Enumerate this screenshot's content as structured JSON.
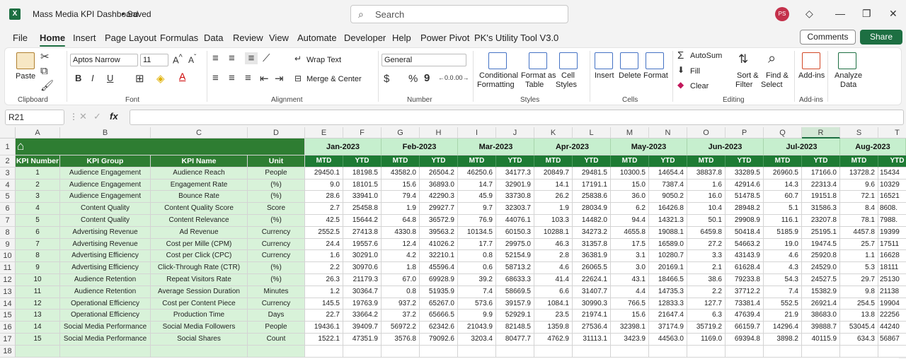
{
  "app": {
    "title": "Mass Media KPI Dashboard",
    "saved": "• Saved",
    "logo": "X",
    "avatar": "PS"
  },
  "search": {
    "placeholder": "Search"
  },
  "tabs": [
    "File",
    "Home",
    "Insert",
    "Page Layout",
    "Formulas",
    "Data",
    "Review",
    "View",
    "Automate",
    "Developer",
    "Help",
    "Power Pivot",
    "PK's Utility Tool V3.0"
  ],
  "actions": {
    "comments": "Comments",
    "share": "Share"
  },
  "ribbon": {
    "paste": "Paste",
    "clipboard": "Clipboard",
    "font_name": "Aptos Narrow",
    "font_size": "11",
    "font": "Font",
    "wrap_text": "Wrap Text",
    "merge_center": "Merge & Center",
    "alignment": "Alignment",
    "number_format": "General",
    "number": "Number",
    "conditional": "Conditional",
    "formatting": "Formatting",
    "format_as": "Format as",
    "table": "Table",
    "cell": "Cell",
    "styles_btn": "Styles",
    "styles": "Styles",
    "insert": "Insert",
    "delete": "Delete",
    "format": "Format",
    "cells": "Cells",
    "autosum": "AutoSum",
    "fill": "Fill",
    "clear": "Clear",
    "sort_filter_1": "Sort &",
    "sort_filter_2": "Filter",
    "find_select_1": "Find &",
    "find_select_2": "Select",
    "editing": "Editing",
    "addins": "Add-ins",
    "addins_group": "Add-ins",
    "analyze_1": "Analyze",
    "analyze_2": "Data"
  },
  "formula_bar": {
    "name_box": "R21",
    "fx": "fx",
    "value": ""
  },
  "columns": [
    "A",
    "B",
    "C",
    "D",
    "E",
    "F",
    "G",
    "H",
    "I",
    "J",
    "K",
    "L",
    "M",
    "N",
    "O",
    "P",
    "Q",
    "R",
    "S",
    "T"
  ],
  "headers": {
    "kpi_number": "KPI Number",
    "kpi_group": "KPI Group",
    "kpi_name": "KPI Name",
    "unit": "Unit",
    "mtd": "MTD",
    "ytd": "YTD"
  },
  "months": [
    "Jan-2023",
    "Feb-2023",
    "Mar-2023",
    "Apr-2023",
    "May-2023",
    "Jun-2023",
    "Jul-2023",
    "Aug-2023"
  ],
  "row_numbers": [
    "1",
    "2",
    "3",
    "4",
    "5",
    "6",
    "7",
    "8",
    "9",
    "10",
    "11",
    "12",
    "13",
    "14",
    "15",
    "16",
    "17",
    "18"
  ],
  "rows": [
    {
      "n": "1",
      "group": "Audience Engagement",
      "name": "Audience Reach",
      "unit": "People",
      "v": [
        "29450.1",
        "18198.5",
        "43582.0",
        "26504.2",
        "46250.6",
        "34177.3",
        "20849.7",
        "29481.5",
        "10300.5",
        "14654.4",
        "38837.8",
        "33289.5",
        "26960.5",
        "17166.0",
        "13728.2",
        "15434"
      ]
    },
    {
      "n": "2",
      "group": "Audience Engagement",
      "name": "Engagement Rate",
      "unit": "(%)",
      "v": [
        "9.0",
        "18101.5",
        "15.6",
        "36893.0",
        "14.7",
        "32901.9",
        "14.1",
        "17191.1",
        "15.0",
        "7387.4",
        "1.6",
        "42914.6",
        "14.3",
        "22313.4",
        "9.6",
        "10329"
      ]
    },
    {
      "n": "3",
      "group": "Audience Engagement",
      "name": "Bounce Rate",
      "unit": "(%)",
      "v": [
        "28.6",
        "33941.0",
        "79.4",
        "42290.3",
        "45.9",
        "33730.8",
        "26.2",
        "25838.6",
        "36.0",
        "9050.2",
        "16.0",
        "51478.5",
        "60.7",
        "19151.8",
        "72.1",
        "16521"
      ]
    },
    {
      "n": "4",
      "group": "Content Quality",
      "name": "Content Quality Score",
      "unit": "Score",
      "v": [
        "2.7",
        "25458.8",
        "1.9",
        "29927.7",
        "9.7",
        "32303.7",
        "1.9",
        "28034.9",
        "6.2",
        "16426.8",
        "10.4",
        "28948.2",
        "5.1",
        "31586.3",
        "8.4",
        "8608."
      ]
    },
    {
      "n": "5",
      "group": "Content Quality",
      "name": "Content Relevance",
      "unit": "(%)",
      "v": [
        "42.5",
        "15644.2",
        "64.8",
        "36572.9",
        "76.9",
        "44076.1",
        "103.3",
        "14482.0",
        "94.4",
        "14321.3",
        "50.1",
        "29908.9",
        "116.1",
        "23207.8",
        "78.1",
        "7988."
      ]
    },
    {
      "n": "6",
      "group": "Advertising Revenue",
      "name": "Ad Revenue",
      "unit": "Currency",
      "v": [
        "2552.5",
        "27413.8",
        "4330.8",
        "39563.2",
        "10134.5",
        "60150.3",
        "10288.1",
        "34273.2",
        "4655.8",
        "19088.1",
        "6459.8",
        "50418.4",
        "5185.9",
        "25195.1",
        "4457.8",
        "19399"
      ]
    },
    {
      "n": "7",
      "group": "Advertising Revenue",
      "name": "Cost per Mille (CPM)",
      "unit": "Currency",
      "v": [
        "24.4",
        "19557.6",
        "12.4",
        "41026.2",
        "17.7",
        "29975.0",
        "46.3",
        "31357.8",
        "17.5",
        "16589.0",
        "27.2",
        "54663.2",
        "19.0",
        "19474.5",
        "25.7",
        "17511"
      ]
    },
    {
      "n": "8",
      "group": "Advertising Efficiency",
      "name": "Cost per Click (CPC)",
      "unit": "Currency",
      "v": [
        "1.6",
        "30291.0",
        "4.2",
        "32210.1",
        "0.8",
        "52154.9",
        "2.8",
        "36381.9",
        "3.1",
        "10280.7",
        "3.3",
        "43143.9",
        "4.6",
        "25920.8",
        "1.1",
        "16628"
      ]
    },
    {
      "n": "9",
      "group": "Advertising Efficiency",
      "name": "Click-Through Rate (CTR)",
      "unit": "(%)",
      "v": [
        "2.2",
        "30970.6",
        "1.8",
        "45596.4",
        "0.6",
        "58713.2",
        "4.6",
        "26065.5",
        "3.0",
        "20169.1",
        "2.1",
        "61628.4",
        "4.3",
        "24529.0",
        "5.3",
        "18111"
      ]
    },
    {
      "n": "10",
      "group": "Audience Retention",
      "name": "Repeat Visitors Rate",
      "unit": "(%)",
      "v": [
        "26.3",
        "21179.3",
        "67.0",
        "69928.9",
        "39.2",
        "68633.3",
        "41.4",
        "22624.1",
        "43.1",
        "18466.5",
        "38.6",
        "79233.8",
        "54.3",
        "24527.5",
        "29.7",
        "25130"
      ]
    },
    {
      "n": "11",
      "group": "Audience Retention",
      "name": "Average Session Duration",
      "unit": "Minutes",
      "v": [
        "1.2",
        "30364.7",
        "0.8",
        "51935.9",
        "7.4",
        "58669.5",
        "6.6",
        "31407.7",
        "4.4",
        "14735.3",
        "2.2",
        "37712.2",
        "7.4",
        "15382.9",
        "9.8",
        "21138"
      ]
    },
    {
      "n": "12",
      "group": "Operational Efficiency",
      "name": "Cost per Content Piece",
      "unit": "Currency",
      "v": [
        "145.5",
        "19763.9",
        "937.2",
        "65267.0",
        "573.6",
        "39157.9",
        "1084.1",
        "30990.3",
        "766.5",
        "12833.3",
        "127.7",
        "73381.4",
        "552.5",
        "26921.4",
        "254.5",
        "19904"
      ]
    },
    {
      "n": "13",
      "group": "Operational Efficiency",
      "name": "Production Time",
      "unit": "Days",
      "v": [
        "22.7",
        "33664.2",
        "37.2",
        "65666.5",
        "9.9",
        "52929.1",
        "23.5",
        "21974.1",
        "15.6",
        "21647.4",
        "6.3",
        "47639.4",
        "21.9",
        "38683.0",
        "13.8",
        "22256"
      ]
    },
    {
      "n": "14",
      "group": "Social Media Performance",
      "name": "Social Media Followers",
      "unit": "People",
      "v": [
        "19436.1",
        "39409.7",
        "56972.2",
        "62342.6",
        "21043.9",
        "82148.5",
        "1359.8",
        "27536.4",
        "32398.1",
        "37174.9",
        "35719.2",
        "66159.7",
        "14296.4",
        "39888.7",
        "53045.4",
        "44240"
      ]
    },
    {
      "n": "15",
      "group": "Social Media Performance",
      "name": "Social Shares",
      "unit": "Count",
      "v": [
        "1522.1",
        "47351.9",
        "3576.8",
        "79092.6",
        "3203.4",
        "80477.7",
        "4762.9",
        "31113.1",
        "3423.9",
        "44563.0",
        "1169.0",
        "69394.8",
        "3898.2",
        "40115.9",
        "634.3",
        "56867"
      ]
    }
  ]
}
